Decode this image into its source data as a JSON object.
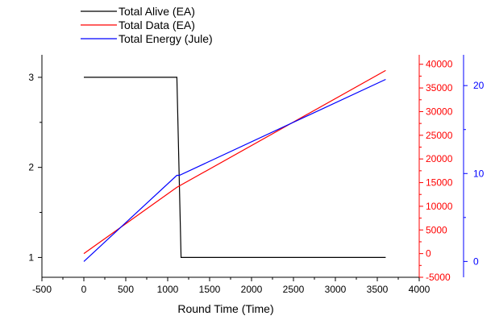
{
  "chart_data": {
    "type": "line",
    "xlabel": "Round Time (Time)",
    "xlim": [
      -500,
      4000
    ],
    "x_ticks": [
      -500,
      0,
      500,
      1000,
      1500,
      2000,
      2500,
      3000,
      3500,
      4000
    ],
    "grid": false,
    "legend": "top-left",
    "axes": {
      "left": {
        "lim": [
          0.78,
          3.25
        ],
        "ticks": [
          1,
          2,
          3
        ],
        "color": "#000000"
      },
      "red": {
        "lim": [
          -5000,
          42000
        ],
        "ticks": [
          -5000,
          0,
          5000,
          10000,
          15000,
          20000,
          25000,
          30000,
          35000,
          40000
        ],
        "color": "#ff0000"
      },
      "blue": {
        "lim": [
          -1.8,
          23.5
        ],
        "ticks": [
          0,
          10,
          20
        ],
        "color": "#0000ff"
      }
    },
    "series": [
      {
        "name": "Total Alive (EA)",
        "color": "#000000",
        "axis": "left",
        "x": [
          0,
          1110,
          1160,
          3600
        ],
        "y": [
          3,
          3,
          1,
          1
        ]
      },
      {
        "name": "Total Data (EA)",
        "color": "#ff0000",
        "axis": "red",
        "x": [
          0,
          1110,
          3600
        ],
        "y": [
          0,
          14000,
          38700
        ]
      },
      {
        "name": "Total Energy (Jule)",
        "color": "#0000ff",
        "axis": "blue",
        "x": [
          0,
          1110,
          1140,
          3600
        ],
        "y": [
          0,
          9.8,
          9.8,
          20.7
        ]
      }
    ]
  }
}
